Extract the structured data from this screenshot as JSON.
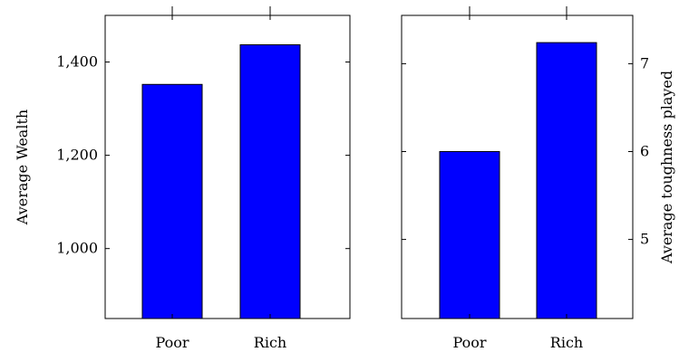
{
  "chart_data": [
    {
      "type": "bar",
      "categories": [
        "Poor",
        "Rich"
      ],
      "values": [
        1352,
        1437
      ],
      "ylabel": "Average Wealth",
      "ylim": [
        850,
        1500
      ],
      "yticks": [
        1000,
        1200,
        1400
      ],
      "ytick_labels": [
        "1,000",
        "1,200",
        "1,400"
      ],
      "bar_color": "#0000ff",
      "y_axis_side": "left"
    },
    {
      "type": "bar",
      "categories": [
        "Poor",
        "Rich"
      ],
      "values": [
        6.0,
        7.24
      ],
      "ylabel": "Average toughness played",
      "ylim": [
        4.1,
        7.55
      ],
      "yticks": [
        5,
        6,
        7
      ],
      "ytick_labels": [
        "5",
        "6",
        "7"
      ],
      "bar_color": "#0000ff",
      "y_axis_side": "right"
    }
  ]
}
